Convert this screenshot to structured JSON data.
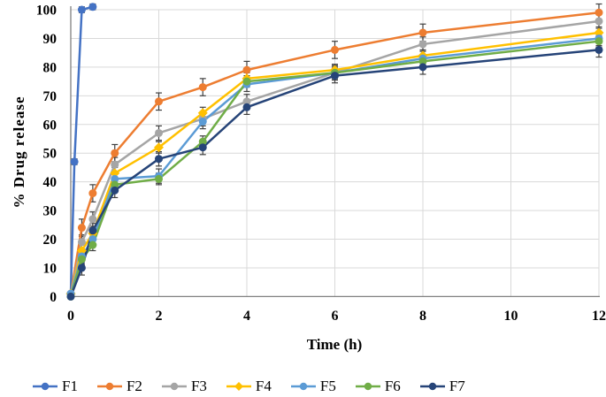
{
  "chart_data": {
    "type": "line",
    "title": "",
    "xlabel": "Time (h)",
    "ylabel": "% Drug release",
    "xlim": [
      0,
      12
    ],
    "ylim": [
      0,
      100
    ],
    "x_ticks": [
      0,
      2,
      4,
      6,
      8,
      10,
      12
    ],
    "y_ticks": [
      0,
      10,
      20,
      30,
      40,
      50,
      60,
      70,
      80,
      90,
      100
    ],
    "grid": true,
    "legend_position": "bottom",
    "error_bar_color": "#404040",
    "grid_color": "#d9d9d9",
    "axis_color": "#808080",
    "series": [
      {
        "name": "F1",
        "color": "#4472C4",
        "marker": "circle",
        "error": 1,
        "points": [
          [
            0,
            1
          ],
          [
            0.083,
            47
          ],
          [
            0.25,
            100
          ],
          [
            0.5,
            101
          ]
        ]
      },
      {
        "name": "F2",
        "color": "#ED7D31",
        "marker": "circle",
        "error": 3,
        "points": [
          [
            0,
            1
          ],
          [
            0.25,
            24
          ],
          [
            0.5,
            36
          ],
          [
            1,
            50
          ],
          [
            2,
            68
          ],
          [
            3,
            73
          ],
          [
            4,
            79
          ],
          [
            6,
            86
          ],
          [
            8,
            92
          ],
          [
            12,
            99
          ]
        ]
      },
      {
        "name": "F3",
        "color": "#A5A5A5",
        "marker": "circle",
        "error": 2.5,
        "points": [
          [
            0,
            1
          ],
          [
            0.25,
            19
          ],
          [
            0.5,
            27
          ],
          [
            1,
            46
          ],
          [
            2,
            57
          ],
          [
            3,
            62
          ],
          [
            4,
            68
          ],
          [
            6,
            78
          ],
          [
            8,
            88
          ],
          [
            12,
            96
          ]
        ]
      },
      {
        "name": "F4",
        "color": "#FFC000",
        "marker": "diamond",
        "error": 2,
        "points": [
          [
            0,
            1
          ],
          [
            0.25,
            16
          ],
          [
            0.5,
            22
          ],
          [
            1,
            43
          ],
          [
            2,
            52
          ],
          [
            3,
            64
          ],
          [
            4,
            76
          ],
          [
            6,
            79
          ],
          [
            8,
            84
          ],
          [
            12,
            92
          ]
        ]
      },
      {
        "name": "F5",
        "color": "#5B9BD5",
        "marker": "circle",
        "error": 2.5,
        "points": [
          [
            0,
            1
          ],
          [
            0.25,
            14
          ],
          [
            0.5,
            20
          ],
          [
            1,
            41
          ],
          [
            2,
            42
          ],
          [
            3,
            61
          ],
          [
            4,
            74
          ],
          [
            6,
            78
          ],
          [
            8,
            83
          ],
          [
            12,
            90
          ]
        ]
      },
      {
        "name": "F6",
        "color": "#70AD47",
        "marker": "circle",
        "error": 2,
        "points": [
          [
            0,
            0
          ],
          [
            0.25,
            13
          ],
          [
            0.5,
            18
          ],
          [
            1,
            39
          ],
          [
            2,
            41
          ],
          [
            3,
            54
          ],
          [
            4,
            75
          ],
          [
            6,
            78
          ],
          [
            8,
            82
          ],
          [
            12,
            89
          ]
        ]
      },
      {
        "name": "F7",
        "color": "#264478",
        "marker": "circle",
        "error": 2.5,
        "points": [
          [
            0,
            0
          ],
          [
            0.25,
            10
          ],
          [
            0.5,
            23
          ],
          [
            1,
            37
          ],
          [
            2,
            48
          ],
          [
            3,
            52
          ],
          [
            4,
            66
          ],
          [
            6,
            77
          ],
          [
            8,
            80
          ],
          [
            12,
            86
          ]
        ]
      }
    ]
  }
}
